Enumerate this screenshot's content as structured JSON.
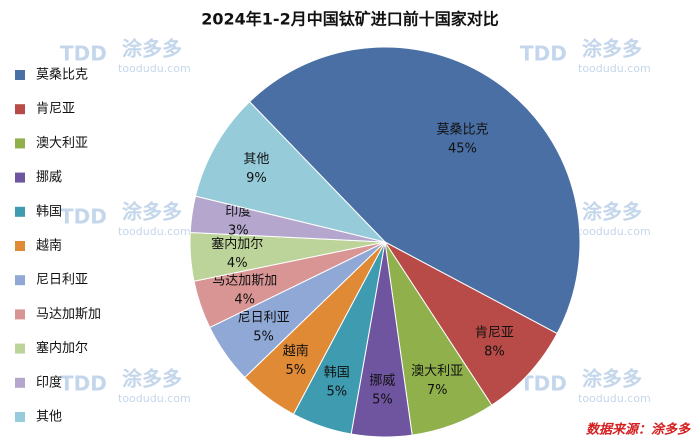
{
  "chart_data": {
    "type": "pie",
    "title": "2024年1-2月中国钛矿进口前十国家对比",
    "categories": [
      "莫桑比克",
      "肯尼亚",
      "澳大利亚",
      "挪威",
      "韩国",
      "越南",
      "尼日利亚",
      "马达加斯加",
      "塞内加尔",
      "印度",
      "其他"
    ],
    "values": [
      45,
      8,
      7,
      5,
      5,
      5,
      5,
      4,
      4,
      3,
      9
    ],
    "value_labels": [
      "45%",
      "8%",
      "7%",
      "5%",
      "5%",
      "5%",
      "5%",
      "4%",
      "4%",
      "3%",
      "9%"
    ],
    "colors": [
      "#4a6fa5",
      "#b84a47",
      "#8fb04a",
      "#6f54a0",
      "#3e9bb0",
      "#e08a35",
      "#8fa8d6",
      "#d99494",
      "#bcd49a",
      "#b4a6cd",
      "#96cbd9"
    ],
    "legend": "left",
    "source": "数据来源：涂多多"
  },
  "watermark": {
    "logo": "TDD",
    "brand": "涂多多",
    "url": "toodudu.com"
  }
}
